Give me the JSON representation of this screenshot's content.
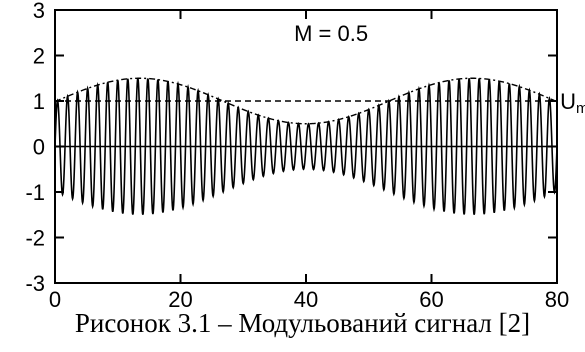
{
  "caption": "Рисонок 3.1 – Модульований сигнал [2]",
  "chart_data": {
    "type": "line",
    "title": "",
    "xlabel": "",
    "ylabel": "",
    "xlim": [
      0,
      80
    ],
    "ylim": [
      -3,
      3
    ],
    "xticks": [
      0,
      20,
      40,
      60,
      80
    ],
    "yticks": [
      -3,
      -2,
      -1,
      0,
      1,
      2,
      3
    ],
    "grid": false,
    "annotations": [
      {
        "text": "M = 0.5",
        "x": 44,
        "y": 2.5
      },
      {
        "text": "U",
        "sub": "m",
        "x": 80.5,
        "y": 1
      }
    ],
    "series": [
      {
        "style": "solid",
        "description": "modulated carrier",
        "amplitude": 1,
        "modulation_index": 0.5,
        "carrier_period": 1.6,
        "envelope_period": 53,
        "envelope_peak_x": 13.5
      },
      {
        "style": "dashdot",
        "description": "envelope",
        "points": [
          [
            0,
            1.0
          ],
          [
            13.5,
            1.5
          ],
          [
            40,
            0.5
          ],
          [
            66.5,
            1.5
          ],
          [
            80,
            1.0
          ]
        ]
      },
      {
        "style": "dashed",
        "description": "carrier amplitude",
        "y": 1.0
      }
    ]
  }
}
